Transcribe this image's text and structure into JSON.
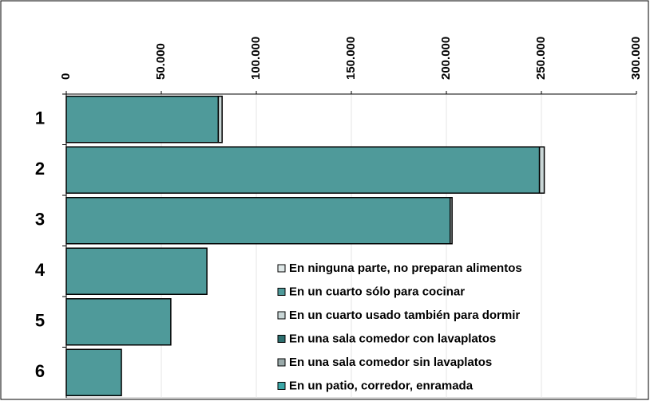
{
  "chart_data": {
    "type": "bar",
    "orientation": "horizontal",
    "stacked": true,
    "categories": [
      "1",
      "2",
      "3",
      "4",
      "5",
      "6"
    ],
    "series": [
      {
        "name": "En ninguna parte, no preparan alimentos",
        "color": "#dfe8e8",
        "values": [
          0,
          0,
          0,
          0,
          0,
          0
        ]
      },
      {
        "name": "En un cuarto sólo para cocinar",
        "color": "#4f9a9a",
        "values": [
          80000,
          249000,
          202000,
          74000,
          55000,
          29000
        ]
      },
      {
        "name": "En un cuarto usado también para dormir",
        "color": "#c9d6d6",
        "values": [
          2000,
          2500,
          1000,
          0,
          0,
          0
        ]
      },
      {
        "name": "En una sala comedor con lavaplatos",
        "color": "#2d6f6f",
        "values": [
          0,
          0,
          0,
          0,
          0,
          0
        ]
      },
      {
        "name": "En una sala comedor sin lavaplatos",
        "color": "#9aaaaa",
        "values": [
          0,
          0,
          0,
          0,
          0,
          0
        ]
      },
      {
        "name": "En un patio, corredor, enramada",
        "color": "#3ba7a7",
        "values": [
          0,
          0,
          0,
          0,
          0,
          0
        ]
      }
    ],
    "xlim": [
      0,
      300000
    ],
    "xticks": [
      0,
      {
        "value": 50000,
        "label": "50.000"
      },
      {
        "value": 100000,
        "label": "100.000"
      },
      {
        "value": 150000,
        "label": "150.000"
      },
      {
        "value": 200000,
        "label": "200.000"
      },
      {
        "value": 250000,
        "label": "250.000"
      },
      {
        "value": 300000,
        "label": "300.000"
      }
    ],
    "grid": true,
    "legend": "lower right"
  }
}
